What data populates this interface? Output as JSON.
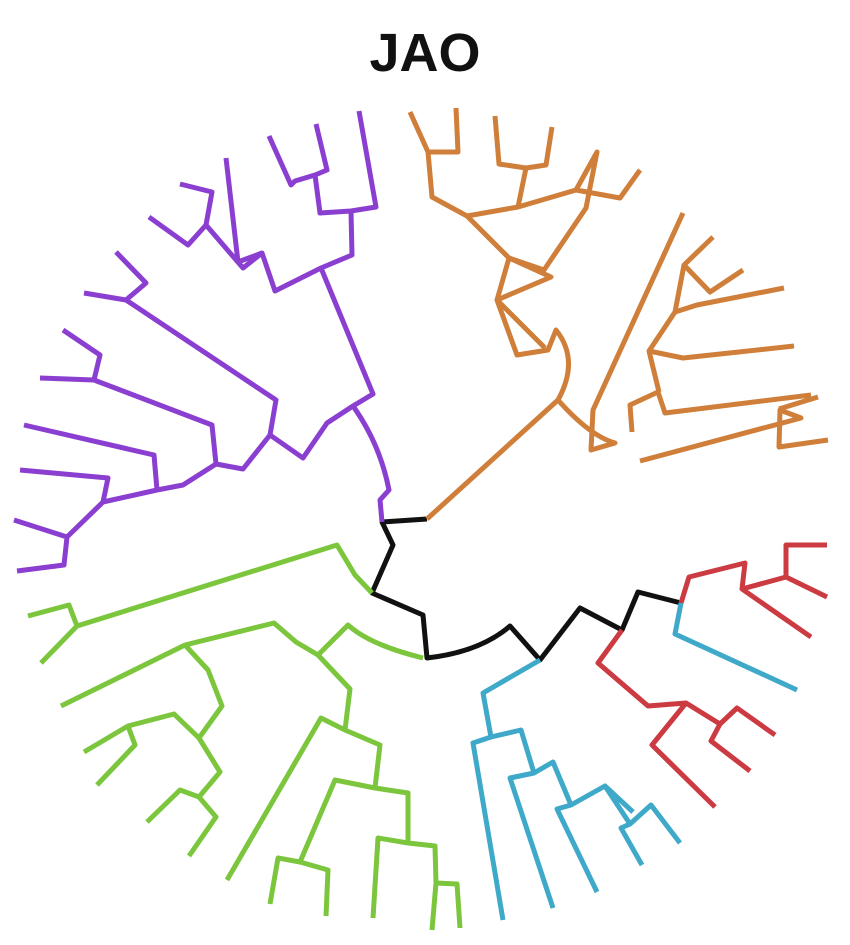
{
  "title": "JAO",
  "colors": {
    "trunk": "#111111",
    "clade_orange": "#D07F3A",
    "clade_purple": "#8B3FD1",
    "clade_green": "#7CC63D",
    "clade_red": "#CC3B42",
    "clade_blue": "#3FA9C9"
  },
  "tree": {
    "type": "circular-dendrogram",
    "clades": [
      "orange",
      "purple",
      "green",
      "red",
      "blue"
    ],
    "leaf_counts": {
      "orange": 17,
      "purple": 18,
      "green": 19,
      "red": 7,
      "blue": 9
    }
  }
}
